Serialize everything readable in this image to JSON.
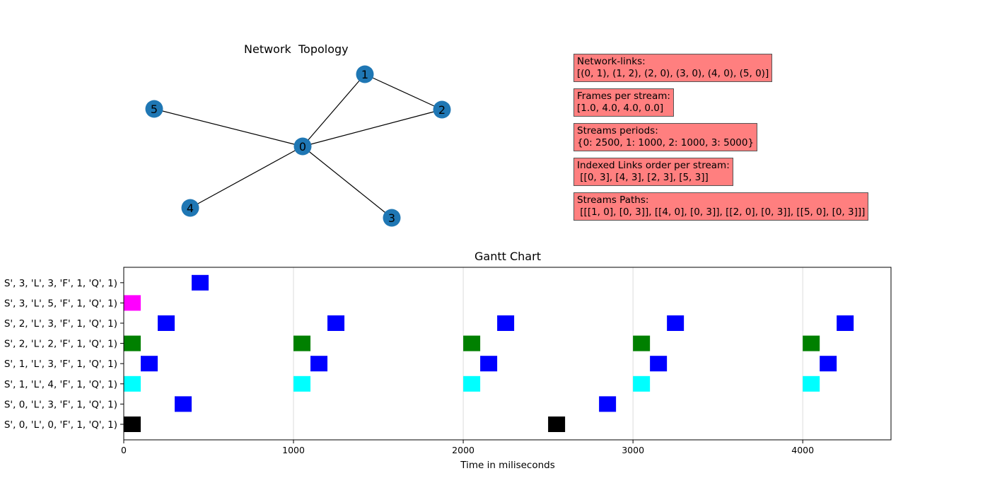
{
  "topology": {
    "title": "Network  Topology",
    "node_color": "#1f77b4",
    "nodes": [
      "0",
      "1",
      "2",
      "3",
      "4",
      "5"
    ],
    "edges": [
      [
        "0",
        "1"
      ],
      [
        "1",
        "2"
      ],
      [
        "2",
        "0"
      ],
      [
        "3",
        "0"
      ],
      [
        "4",
        "0"
      ],
      [
        "5",
        "0"
      ]
    ]
  },
  "info_boxes": {
    "links": "Network-links:\n[(0, 1), (1, 2), (2, 0), (3, 0), (4, 0), (5, 0)]",
    "frames": "Frames per stream:\n[1.0, 4.0, 4.0, 0.0]",
    "periods": "Streams periods:\n{0: 2500, 1: 1000, 2: 1000, 3: 5000}",
    "order": "Indexed Links order per stream:\n [[0, 3], [4, 3], [2, 3], [5, 3]]",
    "paths": "Streams Paths:\n [[[1, 0], [0, 3]], [[4, 0], [0, 3]], [[2, 0], [0, 3]], [[5, 0], [0, 3]]]"
  },
  "chart_data": {
    "type": "gantt",
    "title": "Gantt Chart",
    "xlabel": "Time in miliseconds",
    "ylabel": "",
    "xlim": [
      0,
      4520
    ],
    "xticks": [
      "0",
      "1000",
      "2000",
      "3000",
      "4000"
    ],
    "grid": "vertical",
    "bar_width": 100,
    "rows": [
      {
        "label": "S', 0, 'L', 0, 'F', 1, 'Q', 1)",
        "color": "#000000",
        "starts": [
          0,
          2500
        ]
      },
      {
        "label": "S', 0, 'L', 3, 'F', 1, 'Q', 1)",
        "color": "#0000ff",
        "starts": [
          300,
          2800
        ]
      },
      {
        "label": "S', 1, 'L', 4, 'F', 1, 'Q', 1)",
        "color": "#00ffff",
        "starts": [
          0,
          1000,
          2000,
          3000,
          4000
        ]
      },
      {
        "label": "S', 1, 'L', 3, 'F', 1, 'Q', 1)",
        "color": "#0000ff",
        "starts": [
          100,
          1100,
          2100,
          3100,
          4100
        ]
      },
      {
        "label": "S', 2, 'L', 2, 'F', 1, 'Q', 1)",
        "color": "#008000",
        "starts": [
          0,
          1000,
          2000,
          3000,
          4000
        ]
      },
      {
        "label": "S', 2, 'L', 3, 'F', 1, 'Q', 1)",
        "color": "#0000ff",
        "starts": [
          200,
          1200,
          2200,
          3200,
          4200
        ]
      },
      {
        "label": "S', 3, 'L', 5, 'F', 1, 'Q', 1)",
        "color": "#ff00ff",
        "starts": [
          0
        ]
      },
      {
        "label": "S', 3, 'L', 3, 'F', 1, 'Q', 1)",
        "color": "#0000ff",
        "starts": [
          400
        ]
      }
    ]
  }
}
